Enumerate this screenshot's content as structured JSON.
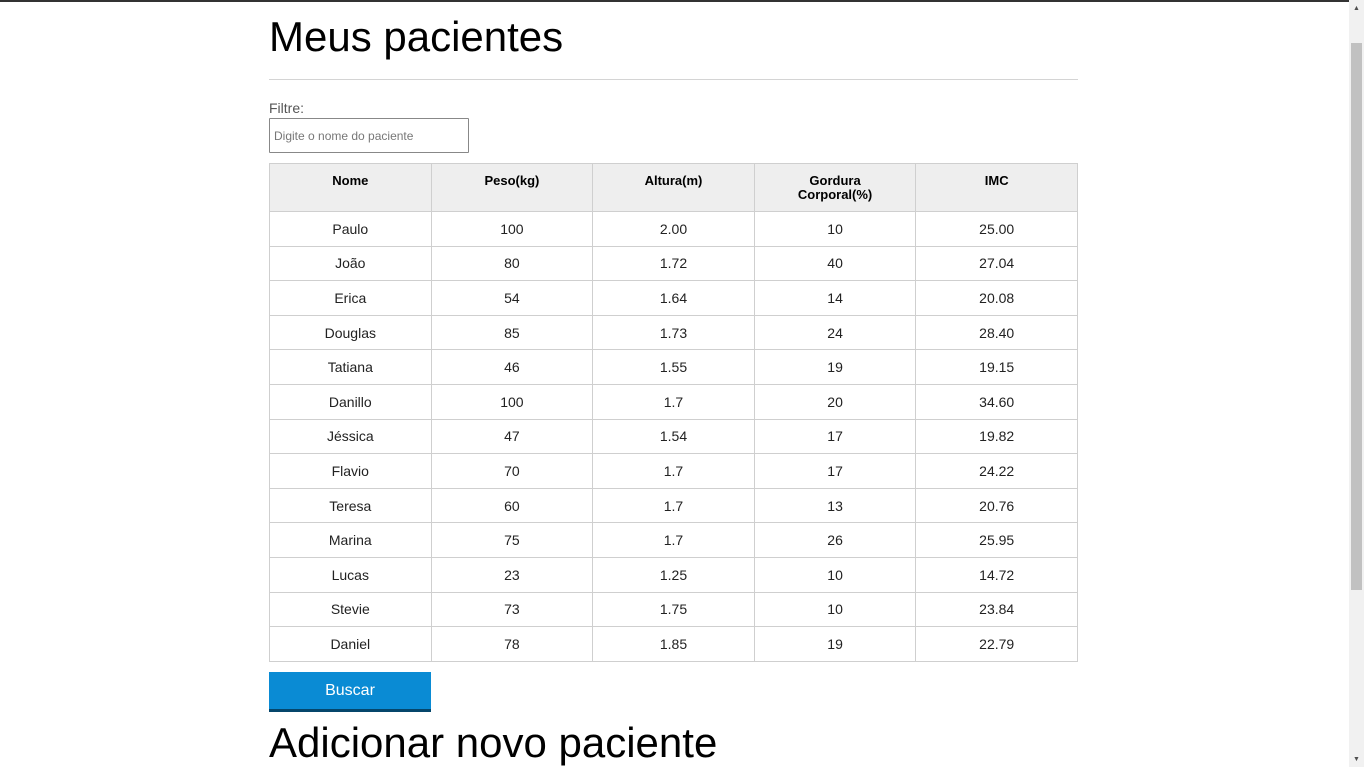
{
  "header": {
    "title": "Meus pacientes"
  },
  "filter": {
    "label": "Filtre:",
    "placeholder": "Digite o nome do paciente"
  },
  "table": {
    "headers": [
      "Nome",
      "Peso(kg)",
      "Altura(m)",
      "Gordura Corporal(%)",
      "IMC"
    ],
    "rows": [
      [
        "Paulo",
        "100",
        "2.00",
        "10",
        "25.00"
      ],
      [
        "João",
        "80",
        "1.72",
        "40",
        "27.04"
      ],
      [
        "Erica",
        "54",
        "1.64",
        "14",
        "20.08"
      ],
      [
        "Douglas",
        "85",
        "1.73",
        "24",
        "28.40"
      ],
      [
        "Tatiana",
        "46",
        "1.55",
        "19",
        "19.15"
      ],
      [
        "Danillo",
        "100",
        "1.7",
        "20",
        "34.60"
      ],
      [
        "Jéssica",
        "47",
        "1.54",
        "17",
        "19.82"
      ],
      [
        "Flavio",
        "70",
        "1.7",
        "17",
        "24.22"
      ],
      [
        "Teresa",
        "60",
        "1.7",
        "13",
        "20.76"
      ],
      [
        "Marina",
        "75",
        "1.7",
        "26",
        "25.95"
      ],
      [
        "Lucas",
        "23",
        "1.25",
        "10",
        "14.72"
      ],
      [
        "Stevie",
        "73",
        "1.75",
        "10",
        "23.84"
      ],
      [
        "Daniel",
        "78",
        "1.85",
        "19",
        "22.79"
      ]
    ]
  },
  "actions": {
    "search_label": "Buscar"
  },
  "add_section": {
    "title": "Adicionar novo paciente"
  },
  "colors": {
    "button": "#0a8bd4",
    "button_border": "#05466b",
    "header_bg": "#eeeeee"
  }
}
